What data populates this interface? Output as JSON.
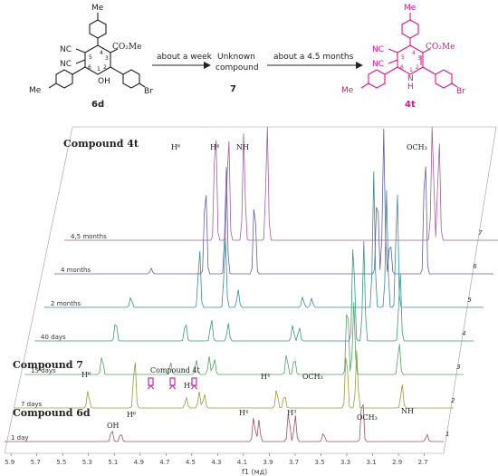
{
  "scheme": {
    "start": {
      "label": "6d",
      "top": "Me",
      "left_bottom": "Me",
      "sub_cn1": "NC",
      "sub_cn2": "NC",
      "sub_ester": "CO₂Me",
      "sub_oh": "OH",
      "sub_br": "Br",
      "ring_nums": [
        "5",
        "4",
        "6",
        "1",
        "2",
        "3"
      ]
    },
    "arrow1": "about a week",
    "middle": {
      "line1": "Unknown",
      "line2": "compound",
      "label": "7"
    },
    "arrow2": "about a 4.5 months",
    "product": {
      "label": "4t",
      "top": "Me",
      "left_bottom": "Me",
      "sub_cn1": "NC",
      "sub_cn2": "NC",
      "sub_ester": "CO₂Me",
      "sub_nh": "N",
      "sub_h": "H",
      "sub_br": "Br",
      "ring_nums": [
        "5",
        "4",
        "6",
        "1",
        "2",
        "3"
      ]
    },
    "colors": {
      "product": "#e0148c",
      "start": "#8b1a1a",
      "ink": "#222222"
    }
  },
  "nmr": {
    "traces": [
      {
        "name": "1 day",
        "idx": "1",
        "color": "#a05060"
      },
      {
        "name": "7 days",
        "idx": "2",
        "color": "#9a9a40"
      },
      {
        "name": "15 days",
        "idx": "3",
        "color": "#55a065"
      },
      {
        "name": "40 days",
        "idx": "4",
        "color": "#3a9a7a"
      },
      {
        "name": "2 months",
        "idx": "5",
        "color": "#3a8a9a"
      },
      {
        "name": "4 months",
        "idx": "6",
        "color": "#6060a0"
      },
      {
        "name": "4,5 months",
        "idx": "7",
        "color": "#a060a0"
      }
    ],
    "titles": {
      "c4t": "Compound 4t",
      "c7": "Compound 7",
      "c6d": "Compound 6d"
    },
    "labels_4t": {
      "h6": "H⁶",
      "h4": "H⁴",
      "nh": "NH",
      "och3": "OCH₃"
    },
    "labels_7": {
      "h6": "H⁶",
      "c4t": "Compound 4t",
      "h4": "H⁴",
      "h3": "H³",
      "och3": "OCH₃"
    },
    "labels_6d": {
      "oh": "OH",
      "h6": "H⁶",
      "h4": "H⁴",
      "h3": "H³",
      "och3": "OCH₃",
      "nh": "NH"
    },
    "axis": {
      "ticks": [
        "5.9",
        "5.7",
        "5.5",
        "5.3",
        "5.1",
        "4.9",
        "4.7",
        "4.5",
        "4.3",
        "4.1",
        "3.9",
        "3.7",
        "3.5",
        "3.3",
        "3.1",
        "2.9",
        "2.7"
      ],
      "xmin": 2.55,
      "xmax": 5.95,
      "label": "f1 (мд)"
    }
  }
}
